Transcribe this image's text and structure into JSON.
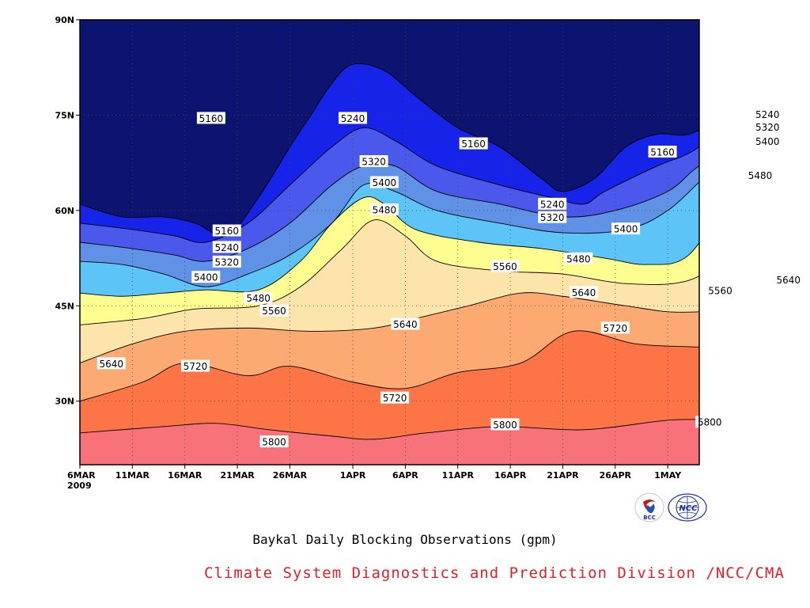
{
  "chart_data": {
    "type": "contour",
    "title": "Baykal Daily Blocking Observations (gpm)",
    "x_ticks": [
      "6MAR",
      "11MAR",
      "16MAR",
      "21MAR",
      "26MAR",
      "1APR",
      "6APR",
      "11APR",
      "16APR",
      "21APR",
      "26APR",
      "1MAY"
    ],
    "x_year": "2009",
    "x_range": [
      "2009-03-06",
      "2009-05-04"
    ],
    "y_ticks": [
      "90N",
      "75N",
      "60N",
      "45N",
      "30N"
    ],
    "y_range": [
      20,
      90
    ],
    "grid": true,
    "levels": [
      5160,
      5240,
      5320,
      5400,
      5480,
      5560,
      5640,
      5720,
      5800
    ],
    "fill_colors": [
      "#0c1470",
      "#1623e8",
      "#4a58ec",
      "#5f92e6",
      "#5dc4f8",
      "#fefe90",
      "#fde4aa",
      "#fca972",
      "#fd7446",
      "#f8727a"
    ],
    "contours": [
      {
        "level": 5800,
        "points": [
          [
            0,
            25
          ],
          [
            8,
            26
          ],
          [
            13,
            26.5
          ],
          [
            18,
            25.5
          ],
          [
            24,
            24.5
          ],
          [
            28,
            24
          ],
          [
            33,
            25
          ],
          [
            40,
            26
          ],
          [
            48,
            25.5
          ],
          [
            56,
            27
          ],
          [
            62,
            27.5
          ],
          [
            68,
            31
          ],
          [
            72,
            33
          ],
          [
            76,
            35
          ],
          [
            79,
            36
          ],
          [
            82,
            31
          ]
        ]
      },
      {
        "level": 5720,
        "points": [
          [
            0,
            30
          ],
          [
            6,
            33
          ],
          [
            10,
            36
          ],
          [
            16,
            34
          ],
          [
            20,
            35.5
          ],
          [
            26,
            33
          ],
          [
            31,
            32
          ],
          [
            36,
            34.5
          ],
          [
            42,
            36
          ],
          [
            47,
            41
          ],
          [
            53,
            39
          ],
          [
            59,
            38.5
          ],
          [
            64,
            38
          ],
          [
            70,
            42
          ],
          [
            74,
            41
          ],
          [
            79,
            43
          ],
          [
            82,
            44
          ]
        ]
      },
      {
        "level": 5640,
        "points": [
          [
            0,
            36
          ],
          [
            5,
            39
          ],
          [
            10,
            41
          ],
          [
            16,
            41.5
          ],
          [
            22,
            41
          ],
          [
            28,
            41.5
          ],
          [
            32,
            43
          ],
          [
            37,
            45
          ],
          [
            42,
            47
          ],
          [
            46,
            46.5
          ],
          [
            52,
            45
          ],
          [
            57,
            44
          ],
          [
            62,
            45
          ],
          [
            66,
            50
          ],
          [
            72,
            47
          ],
          [
            78,
            48
          ],
          [
            82,
            48.5
          ]
        ]
      },
      {
        "level": 5560,
        "points": [
          [
            0,
            42
          ],
          [
            6,
            43
          ],
          [
            11,
            44.5
          ],
          [
            17,
            45
          ],
          [
            21,
            48
          ],
          [
            25,
            54
          ],
          [
            28,
            58.5
          ],
          [
            31,
            56
          ],
          [
            34,
            52
          ],
          [
            40,
            50.5
          ],
          [
            46,
            50
          ],
          [
            52,
            48.5
          ],
          [
            58,
            49
          ],
          [
            63,
            54
          ],
          [
            67,
            56.5
          ],
          [
            70,
            53
          ],
          [
            76,
            52
          ],
          [
            82,
            51.5
          ]
        ]
      },
      {
        "level": 5480,
        "points": [
          [
            0,
            47
          ],
          [
            4,
            46.5
          ],
          [
            8,
            47
          ],
          [
            12,
            47.5
          ],
          [
            17,
            47.5
          ],
          [
            21,
            52
          ],
          [
            24,
            58
          ],
          [
            27,
            62
          ],
          [
            29,
            61
          ],
          [
            32,
            57
          ],
          [
            38,
            55
          ],
          [
            44,
            54
          ],
          [
            50,
            52.5
          ],
          [
            54,
            51.5
          ],
          [
            58,
            53
          ],
          [
            62,
            63
          ],
          [
            64,
            68
          ],
          [
            67,
            62
          ],
          [
            70,
            55
          ],
          [
            76,
            54.5
          ],
          [
            82,
            54.5
          ]
        ]
      },
      {
        "level": 5400,
        "points": [
          [
            0,
            52
          ],
          [
            4,
            51.5
          ],
          [
            8,
            50
          ],
          [
            12,
            48
          ],
          [
            16,
            50
          ],
          [
            20,
            53
          ],
          [
            24,
            58
          ],
          [
            27,
            64
          ],
          [
            30,
            63
          ],
          [
            34,
            60
          ],
          [
            40,
            58
          ],
          [
            46,
            56.5
          ],
          [
            52,
            57
          ],
          [
            56,
            60
          ],
          [
            60,
            66
          ],
          [
            63,
            69.5
          ],
          [
            66,
            68
          ],
          [
            69,
            62
          ],
          [
            73,
            58
          ],
          [
            78,
            57
          ],
          [
            82,
            57
          ]
        ]
      },
      {
        "level": 5320,
        "points": [
          [
            0,
            55
          ],
          [
            5,
            54
          ],
          [
            9,
            53
          ],
          [
            12,
            52
          ],
          [
            16,
            54
          ],
          [
            20,
            58
          ],
          [
            24,
            64
          ],
          [
            27,
            67
          ],
          [
            30,
            67
          ],
          [
            34,
            63
          ],
          [
            40,
            61
          ],
          [
            46,
            59
          ],
          [
            51,
            60
          ],
          [
            56,
            63
          ],
          [
            59,
            67
          ],
          [
            63,
            70
          ],
          [
            66,
            71
          ],
          [
            69,
            66
          ],
          [
            73,
            60
          ],
          [
            78,
            59
          ],
          [
            82,
            59
          ]
        ]
      },
      {
        "level": 5240,
        "points": [
          [
            0,
            58
          ],
          [
            5,
            57
          ],
          [
            9,
            56
          ],
          [
            12,
            55
          ],
          [
            16,
            58
          ],
          [
            20,
            64
          ],
          [
            24,
            70
          ],
          [
            27,
            73
          ],
          [
            30,
            71
          ],
          [
            34,
            67
          ],
          [
            40,
            64
          ],
          [
            45,
            62
          ],
          [
            48,
            61
          ],
          [
            50,
            63
          ],
          [
            55,
            67
          ],
          [
            58,
            69
          ],
          [
            62,
            73
          ],
          [
            66,
            75
          ],
          [
            69,
            71
          ],
          [
            73,
            64
          ],
          [
            78,
            61
          ],
          [
            82,
            61
          ]
        ]
      },
      {
        "level": 5160,
        "points": [
          [
            0,
            61
          ],
          [
            4,
            59
          ],
          [
            8,
            59
          ],
          [
            11,
            58
          ],
          [
            14,
            56
          ],
          [
            17,
            62
          ],
          [
            20,
            70
          ],
          [
            22,
            75
          ],
          [
            24,
            80
          ],
          [
            26,
            83
          ],
          [
            29,
            82
          ],
          [
            32,
            78
          ],
          [
            36,
            73
          ],
          [
            40,
            70
          ],
          [
            44,
            65
          ],
          [
            46,
            63
          ],
          [
            49,
            65
          ],
          [
            52,
            70
          ],
          [
            55,
            72
          ],
          [
            58,
            72
          ],
          [
            62,
            75
          ],
          [
            66,
            76
          ],
          [
            69,
            73
          ],
          [
            73,
            66
          ],
          [
            78,
            63
          ],
          [
            82,
            63
          ]
        ]
      }
    ],
    "labels": [
      {
        "text": "5160",
        "x": 12.5,
        "y": 74.5
      },
      {
        "text": "5240",
        "x": 26,
        "y": 74.5
      },
      {
        "text": "5160",
        "x": 37.5,
        "y": 70.5
      },
      {
        "text": "5160",
        "x": 55.5,
        "y": 69.2
      },
      {
        "text": "5240",
        "x": 65.5,
        "y": 75.1
      },
      {
        "text": "5320",
        "x": 65.5,
        "y": 73.1
      },
      {
        "text": "5400",
        "x": 65.5,
        "y": 70.9
      },
      {
        "text": "5160",
        "x": 72.5,
        "y": 71.0
      },
      {
        "text": "5320",
        "x": 28,
        "y": 67.7
      },
      {
        "text": "5400",
        "x": 29,
        "y": 64.4
      },
      {
        "text": "5480",
        "x": 64.8,
        "y": 65.5
      },
      {
        "text": "5160",
        "x": 79.4,
        "y": 63.4
      },
      {
        "text": "5240",
        "x": 45,
        "y": 61.0
      },
      {
        "text": "5320",
        "x": 45,
        "y": 58.9
      },
      {
        "text": "5480",
        "x": 29,
        "y": 60.1
      },
      {
        "text": "5160",
        "x": 14,
        "y": 56.8
      },
      {
        "text": "5400",
        "x": 52,
        "y": 57.1
      },
      {
        "text": "5240",
        "x": 14,
        "y": 54.2
      },
      {
        "text": "5320",
        "x": 14,
        "y": 51.9
      },
      {
        "text": "5480",
        "x": 47.5,
        "y": 52.4
      },
      {
        "text": "5560",
        "x": 40.5,
        "y": 51.2
      },
      {
        "text": "5400",
        "x": 12,
        "y": 49.5
      },
      {
        "text": "5640",
        "x": 67.5,
        "y": 49.1
      },
      {
        "text": "5560",
        "x": 61,
        "y": 47.4
      },
      {
        "text": "5640",
        "x": 48,
        "y": 47.1
      },
      {
        "text": "5480",
        "x": 17,
        "y": 46.2
      },
      {
        "text": "5560",
        "x": 18.5,
        "y": 44.2
      },
      {
        "text": "5640",
        "x": 31,
        "y": 42.1
      },
      {
        "text": "5720",
        "x": 51,
        "y": 41.5
      },
      {
        "text": "5720",
        "x": 73,
        "y": 40.1
      },
      {
        "text": "5640",
        "x": 3,
        "y": 35.9
      },
      {
        "text": "5720",
        "x": 11,
        "y": 35.5
      },
      {
        "text": "5720",
        "x": 30,
        "y": 30.5
      },
      {
        "text": "5800",
        "x": 40.5,
        "y": 26.3
      },
      {
        "text": "5800",
        "x": 60,
        "y": 26.7
      },
      {
        "text": "5800",
        "x": 18.5,
        "y": 23.6
      }
    ],
    "blobs": [
      {
        "color": "#0c1470",
        "points": [
          [
            79.6,
            67.5
          ],
          [
            80,
            68.2
          ],
          [
            80.8,
            68.2
          ],
          [
            81.2,
            67.2
          ],
          [
            81,
            66
          ],
          [
            80.4,
            65.4
          ],
          [
            79.8,
            65.8
          ],
          [
            79.5,
            66.6
          ]
        ]
      }
    ]
  },
  "footer": {
    "caption": "Baykal Daily Blocking Observations (gpm)",
    "credit": "Climate System Diagnostics and Prediction Division /NCC/CMA"
  },
  "logos": [
    {
      "name": "bcc-logo",
      "text": "BCC",
      "color": "#c01c28"
    },
    {
      "name": "ncc-logo",
      "text": "NCC",
      "color": "#1a2f9a"
    }
  ]
}
